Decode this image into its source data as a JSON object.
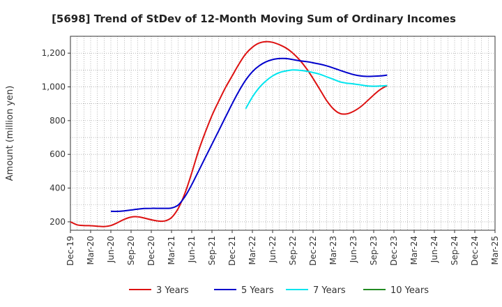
{
  "chart_data": {
    "type": "line",
    "title": "[5698]  Trend of StDev of 12-Month Moving Sum of Ordinary Incomes",
    "xlabel": "",
    "ylabel": "Amount (million yen)",
    "ylim": [
      150,
      1300
    ],
    "yticks": [
      200,
      400,
      600,
      800,
      1000,
      1200
    ],
    "ytick_labels": [
      "200",
      "400",
      "600",
      "800",
      "1,000",
      "1,200"
    ],
    "xtick_labels": [
      "Dec-19",
      "Mar-20",
      "Jun-20",
      "Sep-20",
      "Dec-20",
      "Mar-21",
      "Jun-21",
      "Sep-21",
      "Dec-21",
      "Mar-22",
      "Jun-22",
      "Sep-22",
      "Dec-22",
      "Mar-23",
      "Jun-23",
      "Sep-23",
      "Dec-23",
      "Mar-24",
      "Jun-24",
      "Sep-24",
      "Dec-24",
      "Mar-25"
    ],
    "grid": true,
    "legend_position": "bottom",
    "series": [
      {
        "name": "3 Years",
        "color": "#dd1111",
        "points": [
          [
            0,
            200
          ],
          [
            1,
            182
          ],
          [
            2,
            178
          ],
          [
            3,
            177
          ],
          [
            4,
            174
          ],
          [
            5,
            172
          ],
          [
            6,
            178
          ],
          [
            7,
            195
          ],
          [
            8,
            215
          ],
          [
            9,
            228
          ],
          [
            10,
            230
          ],
          [
            11,
            222
          ],
          [
            12,
            212
          ],
          [
            13,
            205
          ],
          [
            14,
            205
          ],
          [
            15,
            225
          ],
          [
            16,
            280
          ],
          [
            17,
            370
          ],
          [
            18,
            490
          ],
          [
            19,
            620
          ],
          [
            20,
            730
          ],
          [
            21,
            830
          ],
          [
            22,
            915
          ],
          [
            23,
            995
          ],
          [
            24,
            1065
          ],
          [
            25,
            1135
          ],
          [
            26,
            1195
          ],
          [
            27,
            1235
          ],
          [
            28,
            1260
          ],
          [
            29,
            1268
          ],
          [
            30,
            1264
          ],
          [
            31,
            1250
          ],
          [
            32,
            1230
          ],
          [
            33,
            1200
          ],
          [
            34,
            1160
          ],
          [
            35,
            1110
          ],
          [
            36,
            1050
          ],
          [
            37,
            985
          ],
          [
            38,
            920
          ],
          [
            39,
            870
          ],
          [
            40,
            842
          ],
          [
            41,
            840
          ],
          [
            42,
            855
          ],
          [
            43,
            880
          ],
          [
            44,
            915
          ],
          [
            45,
            952
          ],
          [
            46,
            985
          ],
          [
            47,
            1008
          ]
        ]
      },
      {
        "name": "5 Years",
        "color": "#0000cc",
        "points": [
          [
            6,
            262
          ],
          [
            7,
            262
          ],
          [
            8,
            265
          ],
          [
            9,
            270
          ],
          [
            10,
            275
          ],
          [
            11,
            279
          ],
          [
            12,
            280
          ],
          [
            13,
            280
          ],
          [
            14,
            280
          ],
          [
            15,
            282
          ],
          [
            16,
            300
          ],
          [
            17,
            350
          ],
          [
            18,
            420
          ],
          [
            19,
            500
          ],
          [
            20,
            580
          ],
          [
            21,
            660
          ],
          [
            22,
            740
          ],
          [
            23,
            820
          ],
          [
            24,
            900
          ],
          [
            25,
            975
          ],
          [
            26,
            1040
          ],
          [
            27,
            1090
          ],
          [
            28,
            1125
          ],
          [
            29,
            1148
          ],
          [
            30,
            1162
          ],
          [
            31,
            1168
          ],
          [
            32,
            1168
          ],
          [
            33,
            1162
          ],
          [
            34,
            1155
          ],
          [
            35,
            1150
          ],
          [
            36,
            1143
          ],
          [
            37,
            1135
          ],
          [
            38,
            1125
          ],
          [
            39,
            1112
          ],
          [
            40,
            1098
          ],
          [
            41,
            1085
          ],
          [
            42,
            1073
          ],
          [
            43,
            1065
          ],
          [
            44,
            1062
          ],
          [
            45,
            1063
          ],
          [
            46,
            1065
          ],
          [
            47,
            1070
          ]
        ]
      },
      {
        "name": "7 Years",
        "color": "#00e5ee",
        "points": [
          [
            26,
            870
          ],
          [
            27,
            940
          ],
          [
            28,
            995
          ],
          [
            29,
            1035
          ],
          [
            30,
            1065
          ],
          [
            31,
            1085
          ],
          [
            32,
            1095
          ],
          [
            33,
            1100
          ],
          [
            34,
            1098
          ],
          [
            35,
            1093
          ],
          [
            36,
            1085
          ],
          [
            37,
            1075
          ],
          [
            38,
            1060
          ],
          [
            39,
            1045
          ],
          [
            40,
            1030
          ],
          [
            41,
            1022
          ],
          [
            42,
            1018
          ],
          [
            43,
            1012
          ],
          [
            44,
            1006
          ],
          [
            45,
            1004
          ],
          [
            46,
            1005
          ],
          [
            47,
            1008
          ]
        ]
      },
      {
        "name": "10 Years",
        "color": "#228B22",
        "points": []
      }
    ]
  }
}
